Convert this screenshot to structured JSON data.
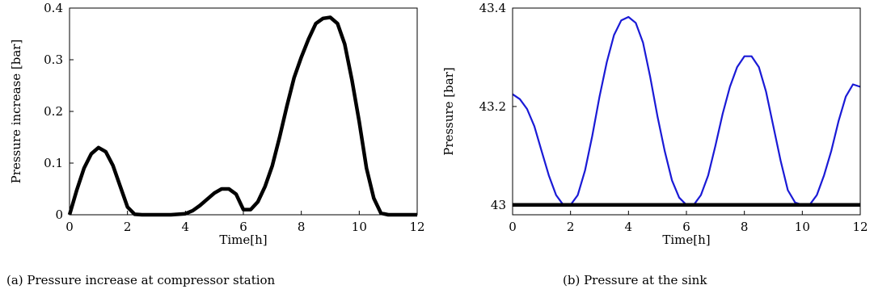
{
  "chart_data": [
    {
      "type": "line",
      "caption": "(a)  Pressure increase at compressor station",
      "xlabel": "Time[h]",
      "ylabel": "Pressure increase [bar]",
      "xlim": [
        0,
        12
      ],
      "ylim": [
        0,
        0.4
      ],
      "xticks": [
        "0",
        "2",
        "4",
        "6",
        "8",
        "10",
        "12"
      ],
      "yticks": [
        "0",
        "0.1",
        "0.2",
        "0.3",
        "0.4"
      ],
      "grid": false,
      "series": [
        {
          "color": "#000000",
          "x": [
            0,
            0.25,
            0.5,
            0.75,
            1.0,
            1.25,
            1.5,
            1.75,
            2.0,
            2.25,
            2.5,
            3.0,
            3.5,
            4.0,
            4.25,
            4.5,
            4.75,
            5.0,
            5.25,
            5.5,
            5.75,
            6.0,
            6.25,
            6.5,
            6.75,
            7.0,
            7.25,
            7.5,
            7.75,
            8.0,
            8.25,
            8.5,
            8.75,
            9.0,
            9.25,
            9.5,
            9.75,
            10.0,
            10.25,
            10.5,
            10.75,
            11.0,
            11.5,
            12.0
          ],
          "y": [
            0.0,
            0.048,
            0.09,
            0.118,
            0.13,
            0.122,
            0.095,
            0.055,
            0.015,
            0.001,
            0.0,
            0.0,
            0.0,
            0.002,
            0.008,
            0.018,
            0.03,
            0.042,
            0.05,
            0.05,
            0.04,
            0.01,
            0.01,
            0.025,
            0.055,
            0.095,
            0.15,
            0.21,
            0.265,
            0.305,
            0.34,
            0.37,
            0.38,
            0.382,
            0.37,
            0.33,
            0.26,
            0.18,
            0.09,
            0.032,
            0.003,
            0.0,
            0.0,
            0.0
          ]
        }
      ]
    },
    {
      "type": "line",
      "caption": "(b)  Pressure at the sink",
      "xlabel": "Time[h]",
      "ylabel": "Pressure [bar]",
      "xlim": [
        0,
        12
      ],
      "ylim": [
        42.98,
        43.4
      ],
      "xticks": [
        "0",
        "2",
        "4",
        "6",
        "8",
        "10",
        "12"
      ],
      "yticks": [
        "43",
        "43.2",
        "43.4"
      ],
      "grid": false,
      "series": [
        {
          "color": "#1a1ad6",
          "x": [
            0,
            0.25,
            0.5,
            0.75,
            1.0,
            1.25,
            1.5,
            1.75,
            2.0,
            2.25,
            2.5,
            2.75,
            3.0,
            3.25,
            3.5,
            3.75,
            4.0,
            4.25,
            4.5,
            4.75,
            5.0,
            5.25,
            5.5,
            5.75,
            6.0,
            6.25,
            6.5,
            6.75,
            7.0,
            7.25,
            7.5,
            7.75,
            8.0,
            8.25,
            8.5,
            8.75,
            9.0,
            9.25,
            9.5,
            9.75,
            10.0,
            10.25,
            10.5,
            10.75,
            11.0,
            11.25,
            11.5,
            11.75,
            12.0
          ],
          "y": [
            43.225,
            43.215,
            43.195,
            43.16,
            43.11,
            43.06,
            43.02,
            43.0,
            43.0,
            43.02,
            43.07,
            43.14,
            43.22,
            43.29,
            43.345,
            43.375,
            43.382,
            43.37,
            43.33,
            43.26,
            43.18,
            43.11,
            43.05,
            43.015,
            43.0,
            43.0,
            43.02,
            43.06,
            43.12,
            43.185,
            43.24,
            43.28,
            43.302,
            43.302,
            43.28,
            43.23,
            43.16,
            43.09,
            43.03,
            43.005,
            43.0,
            43.0,
            43.02,
            43.06,
            43.11,
            43.17,
            43.22,
            43.245,
            43.24
          ]
        },
        {
          "color": "#000000",
          "x": [
            0,
            12
          ],
          "y": [
            43.0,
            43.0
          ]
        }
      ]
    }
  ]
}
